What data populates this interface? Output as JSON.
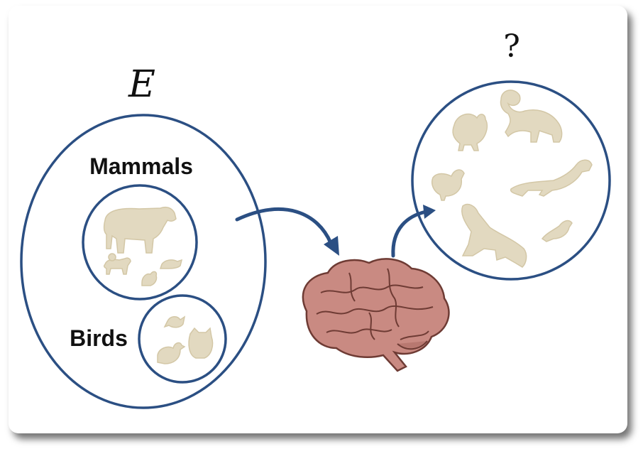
{
  "set_label": "E",
  "unknown_label": "?",
  "categories": {
    "mammals": "Mammals",
    "birds": "Birds"
  },
  "colors": {
    "ring": "#2b4f83",
    "animal": "#e2d9c0",
    "brain": "#c98a82"
  }
}
